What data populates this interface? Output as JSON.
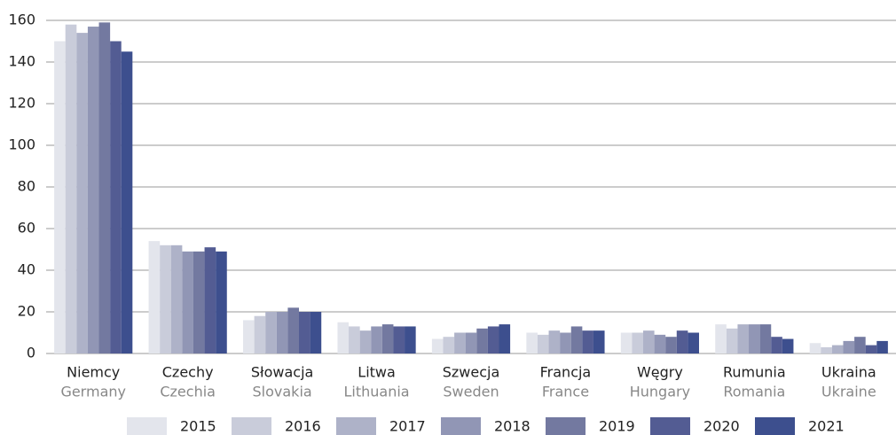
{
  "chart_data": {
    "type": "bar",
    "categories": [
      "Niemcy",
      "Czechy",
      "Słowacja",
      "Litwa",
      "Szwecja",
      "Francja",
      "Węgry",
      "Rumunia",
      "Ukraina"
    ],
    "categories_en": [
      "Germany",
      "Czechia",
      "Slovakia",
      "Lithuania",
      "Sweden",
      "France",
      "Hungary",
      "Romania",
      "Ukraine"
    ],
    "series": [
      {
        "name": "2015",
        "color": "#e3e5ec",
        "values": [
          150,
          54,
          16,
          15,
          7,
          10,
          10,
          14,
          5
        ]
      },
      {
        "name": "2016",
        "color": "#c9ccda",
        "values": [
          158,
          52,
          18,
          13,
          8,
          9,
          10,
          12,
          3
        ]
      },
      {
        "name": "2017",
        "color": "#aeb2c8",
        "values": [
          154,
          52,
          20,
          11,
          10,
          11,
          11,
          14,
          4
        ]
      },
      {
        "name": "2018",
        "color": "#9196b5",
        "values": [
          157,
          49,
          20,
          13,
          10,
          10,
          9,
          14,
          6
        ]
      },
      {
        "name": "2019",
        "color": "#7379a0",
        "values": [
          159,
          49,
          22,
          14,
          12,
          13,
          8,
          14,
          8
        ]
      },
      {
        "name": "2020",
        "color": "#535c93",
        "values": [
          150,
          51,
          20,
          13,
          13,
          11,
          11,
          8,
          4
        ]
      },
      {
        "name": "2021",
        "color": "#3d4f8e",
        "values": [
          145,
          49,
          20,
          13,
          14,
          11,
          10,
          7,
          6
        ]
      }
    ],
    "ylim": [
      0,
      160
    ],
    "yticks": [
      0,
      20,
      40,
      60,
      80,
      100,
      120,
      140,
      160
    ],
    "grid": true,
    "legend": "bottom"
  }
}
